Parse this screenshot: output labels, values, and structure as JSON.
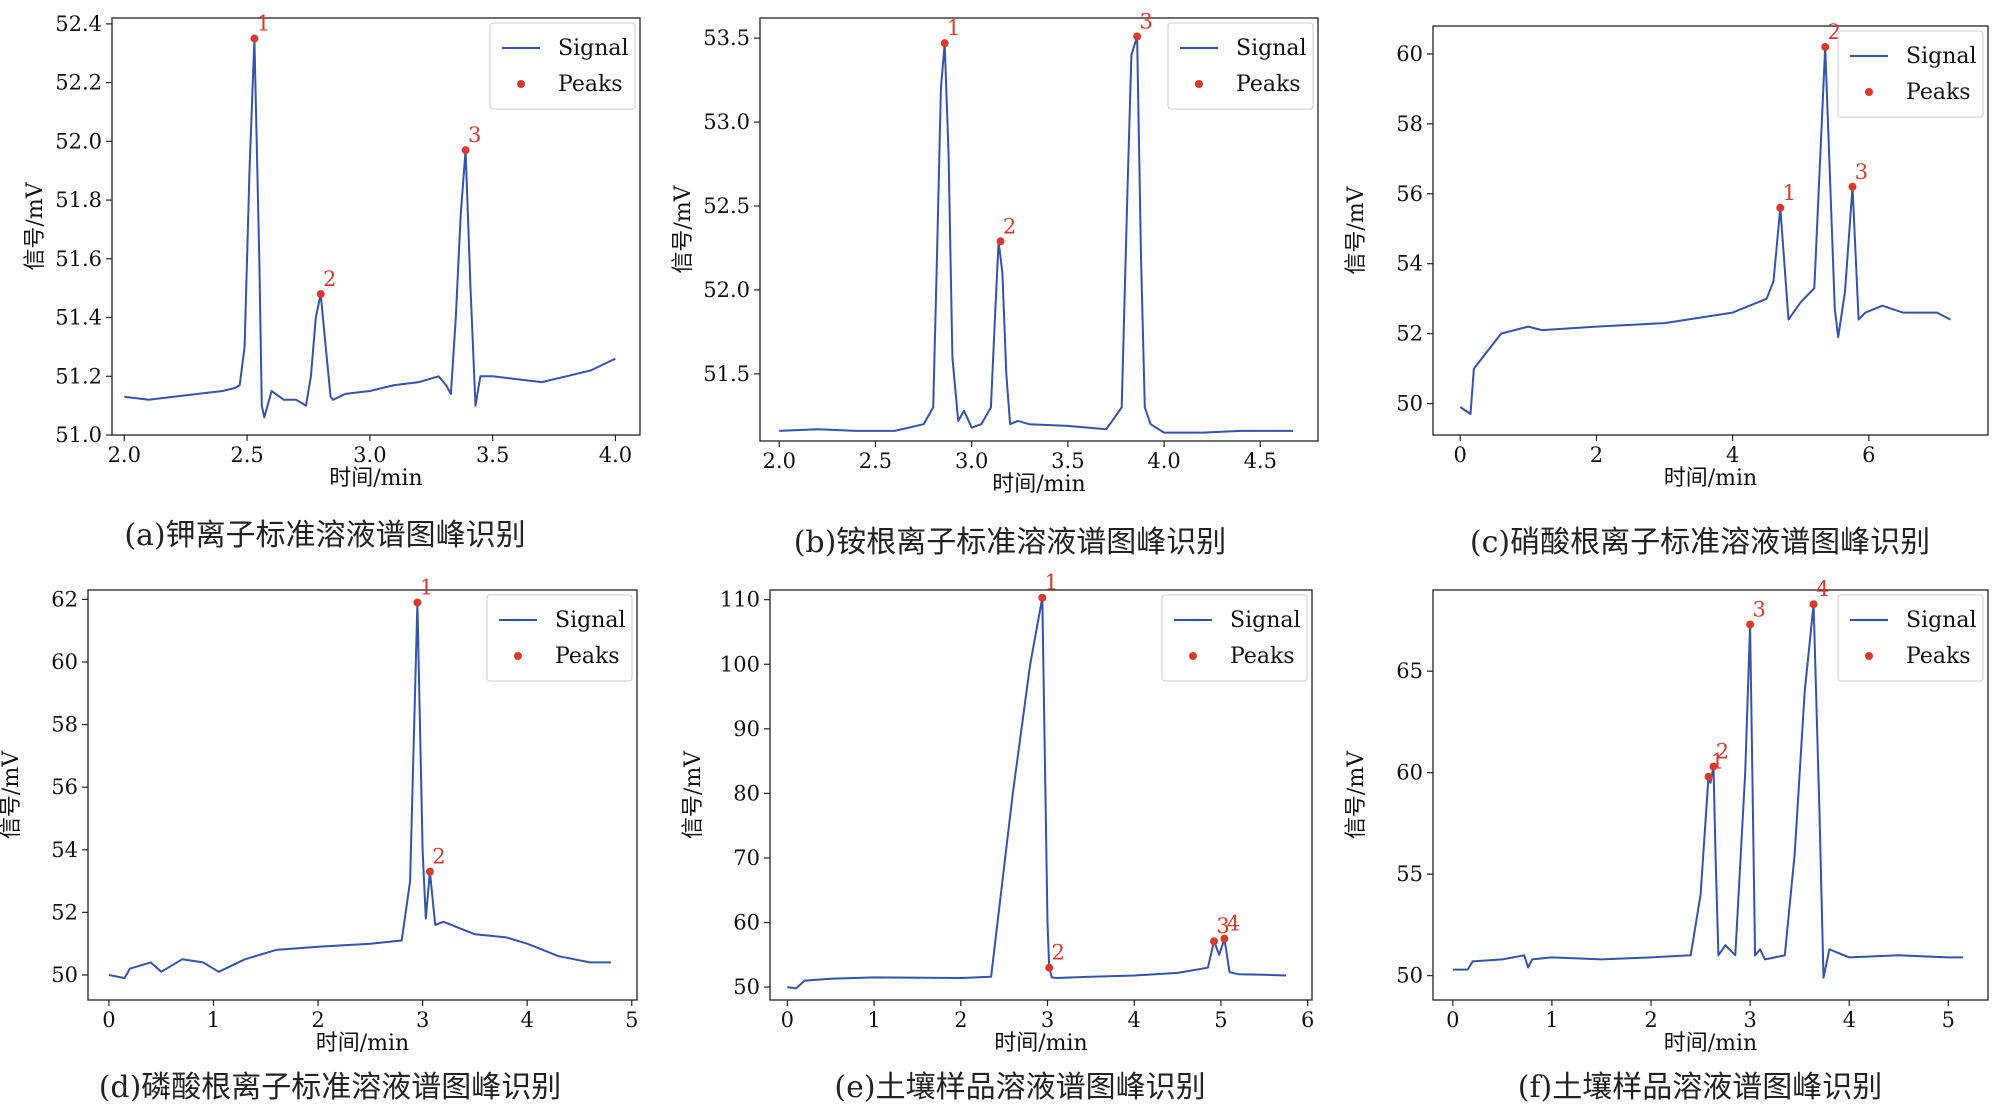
{
  "colors": {
    "signal": "#3654a6",
    "peaks": "#d93a2b",
    "axis": "#222222"
  },
  "chart_data": [
    {
      "id": "a",
      "type": "line",
      "caption": "(a)钾离子标准溶液谱图峰识别",
      "xlabel": "时间/min",
      "ylabel": "信号/mV",
      "xlim": [
        1.95,
        4.1
      ],
      "ylim": [
        51.0,
        52.42
      ],
      "xticks": [
        2.0,
        2.5,
        3.0,
        3.5,
        4.0
      ],
      "xtick_labels": [
        "2.0",
        "2.5",
        "3.0",
        "3.5",
        "4.0"
      ],
      "yticks": [
        51.0,
        51.2,
        51.4,
        51.6,
        51.8,
        52.0,
        52.2,
        52.4
      ],
      "ytick_labels": [
        "51.0",
        "51.2",
        "51.4",
        "51.6",
        "51.8",
        "52.0",
        "52.2",
        "52.4"
      ],
      "legend": {
        "position": "top-right",
        "entries": [
          "Signal",
          "Peaks"
        ]
      },
      "series": [
        {
          "name": "Signal",
          "x": [
            2.0,
            2.1,
            2.2,
            2.3,
            2.4,
            2.45,
            2.47,
            2.49,
            2.51,
            2.53,
            2.55,
            2.56,
            2.57,
            2.6,
            2.65,
            2.7,
            2.74,
            2.76,
            2.78,
            2.8,
            2.82,
            2.84,
            2.85,
            2.9,
            3.0,
            3.1,
            3.2,
            3.28,
            3.31,
            3.33,
            3.35,
            3.37,
            3.39,
            3.41,
            3.43,
            3.45,
            3.5,
            3.6,
            3.7,
            3.8,
            3.9,
            4.0
          ],
          "y": [
            51.13,
            51.12,
            51.13,
            51.14,
            51.15,
            51.16,
            51.17,
            51.3,
            51.9,
            52.35,
            51.6,
            51.1,
            51.06,
            51.15,
            51.12,
            51.12,
            51.1,
            51.2,
            51.4,
            51.48,
            51.3,
            51.13,
            51.12,
            51.14,
            51.15,
            51.17,
            51.18,
            51.2,
            51.17,
            51.14,
            51.4,
            51.75,
            51.97,
            51.5,
            51.1,
            51.2,
            51.2,
            51.19,
            51.18,
            51.2,
            51.22,
            51.26
          ]
        }
      ],
      "peaks": [
        {
          "label": "1",
          "x": 2.53,
          "y": 52.35
        },
        {
          "label": "2",
          "x": 2.8,
          "y": 51.48
        },
        {
          "label": "3",
          "x": 3.39,
          "y": 51.97
        }
      ]
    },
    {
      "id": "b",
      "type": "line",
      "caption": "(b)铵根离子标准溶液谱图峰识别",
      "xlabel": "时间/min",
      "ylabel": "信号/mV",
      "xlim": [
        1.9,
        4.8
      ],
      "ylim": [
        51.1,
        53.62
      ],
      "xticks": [
        2.0,
        2.5,
        3.0,
        3.5,
        4.0,
        4.5
      ],
      "xtick_labels": [
        "2.0",
        "2.5",
        "3.0",
        "3.5",
        "4.0",
        "4.5"
      ],
      "yticks": [
        51.5,
        52.0,
        52.5,
        53.0,
        53.5
      ],
      "ytick_labels": [
        "51.5",
        "52.0",
        "52.5",
        "53.0",
        "53.5"
      ],
      "legend": {
        "position": "top-right",
        "entries": [
          "Signal",
          "Peaks"
        ]
      },
      "series": [
        {
          "name": "Signal",
          "x": [
            2.0,
            2.2,
            2.4,
            2.6,
            2.75,
            2.8,
            2.82,
            2.84,
            2.86,
            2.88,
            2.9,
            2.93,
            2.96,
            3.0,
            3.05,
            3.1,
            3.12,
            3.14,
            3.16,
            3.18,
            3.2,
            3.24,
            3.3,
            3.5,
            3.7,
            3.78,
            3.81,
            3.83,
            3.86,
            3.88,
            3.9,
            3.93,
            4.0,
            4.2,
            4.4,
            4.6,
            4.67
          ],
          "y": [
            51.16,
            51.17,
            51.16,
            51.16,
            51.2,
            51.3,
            52.2,
            53.2,
            53.47,
            52.8,
            51.6,
            51.22,
            51.28,
            51.18,
            51.2,
            51.3,
            51.8,
            52.29,
            52.1,
            51.5,
            51.2,
            51.22,
            51.2,
            51.19,
            51.17,
            51.3,
            52.6,
            53.4,
            53.51,
            52.2,
            51.3,
            51.2,
            51.15,
            51.15,
            51.16,
            51.16,
            51.16
          ]
        }
      ],
      "peaks": [
        {
          "label": "1",
          "x": 2.86,
          "y": 53.47
        },
        {
          "label": "2",
          "x": 3.15,
          "y": 52.29
        },
        {
          "label": "3",
          "x": 3.86,
          "y": 53.51
        }
      ]
    },
    {
      "id": "c",
      "type": "line",
      "caption": "(c)硝酸根离子标准溶液谱图峰识别",
      "xlabel": "时间/min",
      "ylabel": "信号/mV",
      "xlim": [
        -0.4,
        7.75
      ],
      "ylim": [
        49.1,
        60.8
      ],
      "xticks": [
        0,
        2,
        4,
        6
      ],
      "xtick_labels": [
        "0",
        "2",
        "4",
        "6"
      ],
      "yticks": [
        50,
        52,
        54,
        56,
        58,
        60
      ],
      "ytick_labels": [
        "50",
        "52",
        "54",
        "56",
        "58",
        "60"
      ],
      "legend": {
        "position": "top-right",
        "entries": [
          "Signal",
          "Peaks"
        ]
      },
      "series": [
        {
          "name": "Signal",
          "x": [
            0.0,
            0.15,
            0.2,
            0.4,
            0.6,
            1.0,
            1.2,
            2.0,
            3.0,
            4.0,
            4.5,
            4.6,
            4.7,
            4.82,
            5.0,
            5.2,
            5.36,
            5.5,
            5.55,
            5.65,
            5.76,
            5.85,
            5.95,
            6.2,
            6.5,
            7.0,
            7.2
          ],
          "y": [
            49.9,
            49.7,
            51.0,
            51.5,
            52.0,
            52.2,
            52.1,
            52.2,
            52.3,
            52.6,
            53.0,
            53.5,
            55.6,
            52.4,
            52.9,
            53.3,
            60.2,
            52.7,
            51.9,
            53.2,
            56.2,
            52.4,
            52.6,
            52.8,
            52.6,
            52.6,
            52.4
          ]
        }
      ],
      "peaks": [
        {
          "label": "1",
          "x": 4.7,
          "y": 55.6
        },
        {
          "label": "2",
          "x": 5.36,
          "y": 60.2
        },
        {
          "label": "3",
          "x": 5.76,
          "y": 56.2
        }
      ]
    },
    {
      "id": "d",
      "type": "line",
      "caption": "(d)磷酸根离子标准溶液谱图峰识别",
      "xlabel": "时间/min",
      "ylabel": "信号/mV",
      "xlim": [
        -0.2,
        5.05
      ],
      "ylim": [
        49.2,
        62.3
      ],
      "xticks": [
        0,
        1,
        2,
        3,
        4,
        5
      ],
      "xtick_labels": [
        "0",
        "1",
        "2",
        "3",
        "4",
        "5"
      ],
      "yticks": [
        50,
        52,
        54,
        56,
        58,
        60,
        62
      ],
      "ytick_labels": [
        "50",
        "52",
        "54",
        "56",
        "58",
        "60",
        "62"
      ],
      "legend": {
        "position": "top-right",
        "entries": [
          "Signal",
          "Peaks"
        ]
      },
      "series": [
        {
          "name": "Signal",
          "x": [
            0.0,
            0.15,
            0.2,
            0.4,
            0.5,
            0.7,
            0.9,
            1.05,
            1.3,
            1.6,
            2.0,
            2.5,
            2.8,
            2.88,
            2.95,
            3.0,
            3.03,
            3.07,
            3.12,
            3.2,
            3.5,
            3.8,
            4.0,
            4.3,
            4.6,
            4.8
          ],
          "y": [
            50.0,
            49.9,
            50.2,
            50.4,
            50.1,
            50.5,
            50.4,
            50.1,
            50.5,
            50.8,
            50.9,
            51.0,
            51.1,
            53.0,
            61.9,
            54.0,
            51.8,
            53.3,
            51.6,
            51.7,
            51.3,
            51.2,
            51.0,
            50.6,
            50.4,
            50.4
          ]
        }
      ],
      "peaks": [
        {
          "label": "1",
          "x": 2.95,
          "y": 61.9
        },
        {
          "label": "2",
          "x": 3.07,
          "y": 53.3
        }
      ]
    },
    {
      "id": "e",
      "type": "line",
      "caption": "(e)土壤样品溶液谱图峰识别",
      "xlabel": "时间/min",
      "ylabel": "信号/mV",
      "xlim": [
        -0.2,
        6.05
      ],
      "ylim": [
        48.0,
        111.5
      ],
      "xticks": [
        0,
        1,
        2,
        3,
        4,
        5,
        6
      ],
      "xtick_labels": [
        "0",
        "1",
        "2",
        "3",
        "4",
        "5",
        "6"
      ],
      "yticks": [
        50,
        60,
        70,
        80,
        90,
        100,
        110
      ],
      "ytick_labels": [
        "50",
        "60",
        "70",
        "80",
        "90",
        "100",
        "110"
      ],
      "legend": {
        "position": "top-right",
        "entries": [
          "Signal",
          "Peaks"
        ]
      },
      "series": [
        {
          "name": "Signal",
          "x": [
            0.0,
            0.1,
            0.2,
            0.5,
            1.0,
            2.0,
            2.35,
            2.6,
            2.8,
            2.94,
            3.0,
            3.02,
            3.05,
            3.1,
            3.5,
            4.0,
            4.5,
            4.85,
            4.92,
            4.98,
            5.04,
            5.1,
            5.2,
            5.5,
            5.75
          ],
          "y": [
            50.0,
            49.8,
            51.0,
            51.3,
            51.5,
            51.4,
            51.6,
            80.0,
            100.0,
            110.3,
            60.0,
            53.0,
            51.5,
            51.4,
            51.6,
            51.8,
            52.2,
            53.0,
            57.1,
            55.0,
            57.5,
            52.3,
            52.0,
            51.9,
            51.8
          ]
        }
      ],
      "peaks": [
        {
          "label": "1",
          "x": 2.94,
          "y": 110.3
        },
        {
          "label": "2",
          "x": 3.02,
          "y": 53.0
        },
        {
          "label": "3",
          "x": 4.92,
          "y": 57.1
        },
        {
          "label": "4",
          "x": 5.04,
          "y": 57.5
        }
      ]
    },
    {
      "id": "f",
      "type": "line",
      "caption": "(f)土壤样品溶液谱图峰识别",
      "xlabel": "时间/min",
      "ylabel": "信号/mV",
      "xlim": [
        -0.2,
        5.4
      ],
      "ylim": [
        48.8,
        69.0
      ],
      "xticks": [
        0,
        1,
        2,
        3,
        4,
        5
      ],
      "xtick_labels": [
        "0",
        "1",
        "2",
        "3",
        "4",
        "5"
      ],
      "yticks": [
        50,
        55,
        60,
        65
      ],
      "ytick_labels": [
        "50",
        "55",
        "60",
        "65"
      ],
      "legend": {
        "position": "top-right",
        "entries": [
          "Signal",
          "Peaks"
        ]
      },
      "series": [
        {
          "name": "Signal",
          "x": [
            0.0,
            0.15,
            0.2,
            0.5,
            0.72,
            0.76,
            0.8,
            1.0,
            1.5,
            2.0,
            2.4,
            2.5,
            2.58,
            2.6,
            2.63,
            2.65,
            2.68,
            2.75,
            2.85,
            2.95,
            3.0,
            3.05,
            3.1,
            3.15,
            3.25,
            3.35,
            3.45,
            3.55,
            3.64,
            3.7,
            3.74,
            3.8,
            4.0,
            4.5,
            5.0,
            5.15
          ],
          "y": [
            50.3,
            50.3,
            50.7,
            50.8,
            51.0,
            50.4,
            50.8,
            50.9,
            50.8,
            50.9,
            51.0,
            54.0,
            59.8,
            59.5,
            60.3,
            56.0,
            51.0,
            51.5,
            51.0,
            60.0,
            67.3,
            51.0,
            51.3,
            50.8,
            50.9,
            51.0,
            56.0,
            64.0,
            68.3,
            58.0,
            49.9,
            51.3,
            50.9,
            51.0,
            50.9,
            50.9
          ]
        }
      ],
      "peaks": [
        {
          "label": "1",
          "x": 2.58,
          "y": 59.8
        },
        {
          "label": "2",
          "x": 2.63,
          "y": 60.3
        },
        {
          "label": "3",
          "x": 3.0,
          "y": 67.3
        },
        {
          "label": "4",
          "x": 3.64,
          "y": 68.3
        }
      ]
    }
  ]
}
